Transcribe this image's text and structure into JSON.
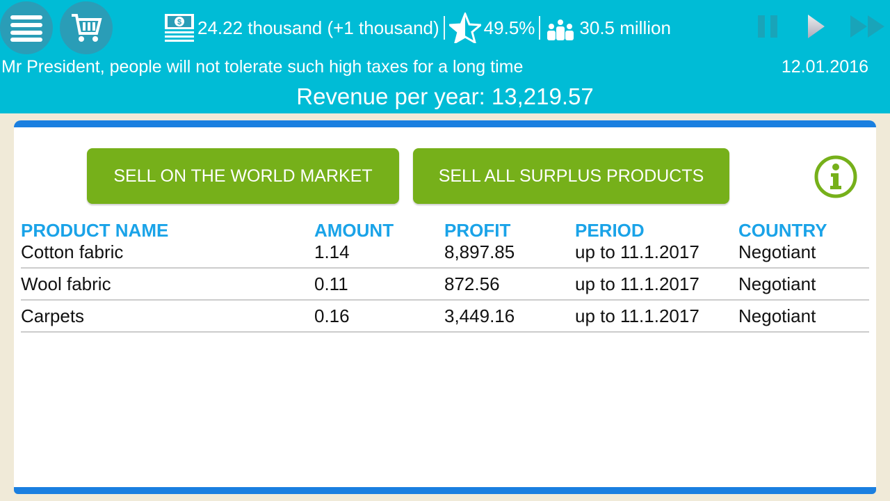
{
  "header": {
    "money": "24.22 thousand (+1 thousand)",
    "rating": "49.5%",
    "population": "30.5 million",
    "message": "Mr President, people will not tolerate such high taxes for a long time",
    "date": "12.01.2016",
    "revenue": "Revenue per year: 13,219.57"
  },
  "buttons": {
    "sell_world": "SELL ON THE WORLD MARKET",
    "sell_surplus": "SELL ALL SURPLUS PRODUCTS"
  },
  "table": {
    "columns": [
      "PRODUCT NAME",
      "AMOUNT",
      "PROFIT",
      "PERIOD",
      "COUNTRY"
    ],
    "rows": [
      [
        "Cotton fabric",
        "1.14",
        "8,897.85",
        "up to 11.1.2017",
        "Negotiant"
      ],
      [
        "Wool fabric",
        "0.11",
        "872.56",
        "up to 11.1.2017",
        "Negotiant"
      ],
      [
        "Carpets",
        "0.16",
        "3,449.16",
        "up to 11.1.2017",
        "Negotiant"
      ]
    ]
  },
  "colors": {
    "header": "#00bcd6",
    "button": "#76b01a",
    "column_header": "#1aa3e8",
    "panel_border": "#1a7fe0"
  }
}
